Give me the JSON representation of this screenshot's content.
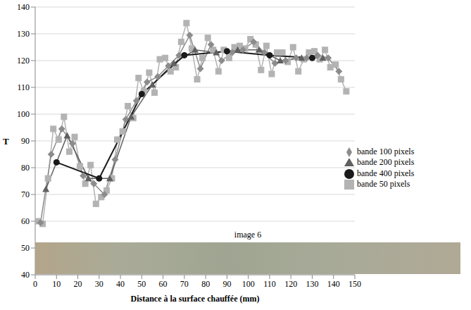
{
  "chart_data": {
    "type": "line",
    "x_label": "Distance à la surface chauffée (mm)",
    "y_label": "T",
    "annotation": "image 6",
    "xlim": [
      0,
      150
    ],
    "xticks": [
      0,
      10,
      20,
      30,
      40,
      50,
      60,
      70,
      80,
      90,
      100,
      110,
      120,
      130,
      140,
      150
    ],
    "ylim": [
      40,
      140
    ],
    "yticks": [
      40,
      50,
      60,
      70,
      80,
      90,
      100,
      110,
      120,
      130,
      140
    ],
    "grid": true,
    "legend": "right",
    "series": [
      {
        "name": "bande 50 pixels",
        "color": "#b3b3b3",
        "marker": "square",
        "x": [
          1,
          3.5,
          6,
          8.5,
          11,
          13.5,
          16,
          18.5,
          21,
          23.5,
          26,
          28.5,
          31,
          33.5,
          36,
          38.5,
          41,
          43.5,
          46,
          48.5,
          51,
          53.5,
          56,
          58.5,
          61,
          63.5,
          66,
          68.5,
          71,
          73.5,
          76,
          78.5,
          81,
          83.5,
          86,
          88.5,
          91,
          93.5,
          96,
          98.5,
          101,
          103.5,
          106,
          108.5,
          111,
          113.5,
          116,
          118.5,
          121,
          123.5,
          126,
          128.5,
          131,
          133.5,
          136,
          138.5,
          141,
          143.5,
          146
        ],
        "values": [
          60,
          59,
          76,
          94.5,
          90.5,
          99,
          86,
          91.5,
          80.5,
          74,
          81,
          66.5,
          69,
          71.5,
          76,
          90.5,
          93.5,
          103,
          98.5,
          113.5,
          108.5,
          115.5,
          108,
          120.5,
          121,
          116,
          117.5,
          127,
          134,
          124.5,
          113,
          121,
          128.5,
          124,
          116,
          124,
          121,
          125,
          125.5,
          124.5,
          128,
          126,
          116.5,
          125.5,
          115,
          123,
          123,
          119.5,
          125,
          116,
          120.5,
          123,
          123.5,
          120.5,
          124,
          117.5,
          118.5,
          113,
          108.5
        ]
      },
      {
        "name": "bande 100 pixels",
        "color": "#8c8c8c",
        "marker": "diamond",
        "x": [
          2.5,
          7.5,
          12.5,
          17.5,
          22.5,
          27.5,
          32.5,
          37.5,
          42.5,
          47.5,
          52.5,
          57.5,
          62.5,
          67.5,
          72.5,
          77.5,
          82.5,
          87.5,
          92.5,
          97.5,
          102.5,
          107.5,
          112.5,
          117.5,
          122.5,
          127.5,
          132.5,
          137.5,
          142.5
        ],
        "values": [
          59.5,
          85,
          94.5,
          89,
          77,
          74,
          70,
          83,
          98,
          105,
          112,
          114,
          118,
          122,
          129.5,
          117,
          126,
          120,
          123,
          124,
          127,
          123,
          119,
          120,
          121,
          121,
          122,
          121,
          116
        ]
      },
      {
        "name": "bande 200 pixels",
        "color": "#606060",
        "marker": "triangle",
        "x": [
          5,
          15,
          25,
          35,
          45,
          55,
          65,
          75,
          85,
          95,
          105,
          115,
          125,
          135
        ],
        "values": [
          72,
          92,
          76,
          76,
          99,
          111,
          119,
          124,
          123,
          124,
          124,
          120,
          121,
          121
        ]
      },
      {
        "name": "bande 400 pixels",
        "color": "#1a1a1a",
        "marker": "circle",
        "x": [
          10,
          30,
          50,
          70,
          90,
          110,
          130
        ],
        "values": [
          82,
          76,
          107.5,
          122,
          123.5,
          122,
          121
        ]
      }
    ]
  }
}
